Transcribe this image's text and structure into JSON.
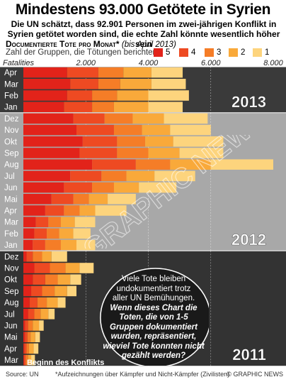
{
  "header": {
    "title": "Mindestens 93.000 Getötete in Syrien",
    "subtitle": "Die UN schätzt, dass 92.901 Personen im zwei-jährigen Konflikt in Syrien getötet worden sind, die echte Zahl könnte wesentlich höher sein",
    "section_label": "Documentierte Tote pro Monat*",
    "section_note": "(bis April 2013)",
    "legend_title": "Zahl der Gruppen, die Tötungen berichten"
  },
  "legend": [
    {
      "label": "5",
      "color": "#e2231a"
    },
    {
      "label": "4",
      "color": "#ee4a22"
    },
    {
      "label": "3",
      "color": "#f57d27"
    },
    {
      "label": "2",
      "color": "#f9a93a"
    },
    {
      "label": "1",
      "color": "#fdd47d"
    }
  ],
  "chart_data": {
    "type": "bar",
    "orientation": "horizontal",
    "stacked": true,
    "xlabel": "Fatalities",
    "xlim": [
      0,
      8000
    ],
    "x_ticks": [
      "2.000",
      "4.000",
      "6.000",
      "8.000"
    ],
    "years": [
      {
        "label": "2013",
        "months": [
          "Apr",
          "Mar",
          "Feb",
          "Jan"
        ]
      },
      {
        "label": "2012",
        "months": [
          "Dez",
          "Nov",
          "Okt",
          "Sep",
          "Aug",
          "Jul",
          "Jun",
          "Mai",
          "Apr",
          "Mar",
          "Feb",
          "Jan"
        ]
      },
      {
        "label": "2011",
        "months": [
          "Dez",
          "Nov",
          "Okt",
          "Sep",
          "Aug",
          "Jul",
          "Jun",
          "Mai",
          "Apr",
          "Mar"
        ]
      }
    ],
    "series": [
      {
        "name": "5",
        "values": [
          1400,
          1500,
          1400,
          1300,
          1600,
          1700,
          1900,
          1800,
          2200,
          1500,
          1300,
          900,
          700,
          400,
          350,
          300,
          100,
          350,
          300,
          250,
          200,
          150,
          50,
          50,
          30,
          20
        ]
      },
      {
        "name": "4",
        "values": [
          1000,
          900,
          800,
          900,
          1000,
          1200,
          1100,
          1200,
          1400,
          1000,
          900,
          700,
          600,
          400,
          400,
          400,
          200,
          500,
          400,
          350,
          250,
          200,
          100,
          80,
          70,
          50
        ]
      },
      {
        "name": "3",
        "values": [
          800,
          700,
          800,
          700,
          900,
          900,
          900,
          1000,
          1100,
          800,
          700,
          500,
          500,
          400,
          400,
          500,
          300,
          500,
          400,
          400,
          300,
          200,
          150,
          100,
          80,
          80
        ]
      },
      {
        "name": "2",
        "values": [
          900,
          1000,
          1000,
          1100,
          1000,
          900,
          900,
          1000,
          1300,
          900,
          800,
          600,
          500,
          450,
          450,
          500,
          300,
          450,
          400,
          400,
          350,
          250,
          200,
          150,
          150,
          100
        ]
      },
      {
        "name": "1",
        "values": [
          1000,
          1100,
          1300,
          1100,
          1400,
          1300,
          1600,
          1400,
          2000,
          1300,
          1200,
          900,
          1000,
          650,
          550,
          600,
          500,
          450,
          350,
          300,
          250,
          200,
          150,
          150,
          150,
          120
        ]
      }
    ]
  },
  "callout": {
    "line1": "Viele Tote bleiben",
    "line2": "undokumentiert trotz",
    "line3": "aller UN Bemühungen.",
    "bold": "Wenn dieses Chart die Toten, die von 1-5 Gruppen dokumentiert wurden, repräsentiert, wieviel Tote konnten nicht gezählt werden?"
  },
  "annotation": "Beginn des Konflikts",
  "watermark": "© GRAPHIC NEWS",
  "footer": {
    "source": "Source: UN",
    "note": "*Aufzeichnungen über Kämpfer und Nicht-Kämpfer (Zivilisten)",
    "credit": "© GRAPHIC NEWS"
  },
  "colors": {
    "bg_2013": "#3a3a3a",
    "bg_2012": "#a8a8a8",
    "bg_2011": "#333333"
  }
}
